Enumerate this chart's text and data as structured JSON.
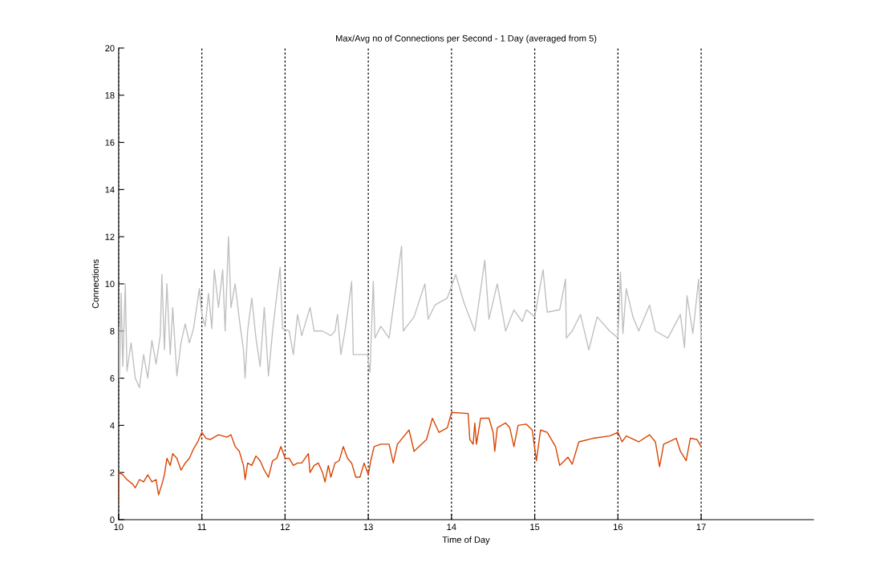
{
  "chart_data": {
    "type": "line",
    "title": "Max/Avg no of Connections per Second - 1 Day (averaged from 5)",
    "xlabel": "Time of Day",
    "ylabel": "Connections",
    "xlim": [
      10,
      18.35
    ],
    "xticks": [
      10,
      11,
      12,
      13,
      14,
      15,
      16,
      17
    ],
    "ylim": [
      0,
      20
    ],
    "yticks": [
      0,
      2,
      4,
      6,
      8,
      10,
      12,
      14,
      16,
      18,
      20
    ],
    "grid": "x",
    "line_style": "solid",
    "marker": "none",
    "series": [
      {
        "color": "#c0c0c0",
        "x": [
          10.0,
          10.01,
          10.03,
          10.05,
          10.08,
          10.1,
          10.15,
          10.2,
          10.25,
          10.3,
          10.35,
          10.4,
          10.45,
          10.5,
          10.52,
          10.55,
          10.58,
          10.62,
          10.65,
          10.7,
          10.75,
          10.8,
          10.85,
          10.9,
          10.97,
          11.0,
          11.04,
          11.08,
          11.12,
          11.15,
          11.2,
          11.25,
          11.28,
          11.32,
          11.35,
          11.4,
          11.45,
          11.5,
          11.52,
          11.55,
          11.6,
          11.65,
          11.7,
          11.75,
          11.8,
          11.85,
          11.94,
          11.97,
          12.05,
          12.1,
          12.15,
          12.2,
          12.3,
          12.35,
          12.45,
          12.55,
          12.6,
          12.63,
          12.67,
          12.72,
          12.76,
          12.8,
          12.82,
          12.9,
          12.99,
          13.02,
          13.06,
          13.08,
          13.15,
          13.25,
          13.4,
          13.42,
          13.55,
          13.68,
          13.72,
          13.8,
          13.95,
          14.05,
          14.15,
          14.28,
          14.4,
          14.45,
          14.55,
          14.65,
          14.75,
          14.85,
          14.9,
          15.0,
          15.1,
          15.15,
          15.3,
          15.37,
          15.38,
          15.45,
          15.55,
          15.65,
          15.75,
          15.9,
          16.0,
          16.03,
          16.06,
          16.1,
          16.18,
          16.25,
          16.38,
          16.45,
          16.6,
          16.75,
          16.8,
          16.83,
          16.9,
          16.97,
          17.0
        ],
        "values": [
          8.2,
          6.0,
          9.6,
          6.5,
          10.0,
          6.3,
          7.5,
          6.0,
          5.6,
          7.0,
          6.0,
          7.6,
          6.6,
          7.8,
          10.4,
          7.2,
          10.0,
          7.0,
          9.0,
          6.1,
          7.5,
          8.3,
          7.5,
          8.1,
          9.8,
          8.7,
          8.2,
          9.6,
          8.1,
          10.6,
          9.0,
          10.6,
          8.0,
          12.0,
          9.0,
          10.0,
          8.5,
          7.2,
          6.0,
          8.0,
          9.4,
          7.7,
          6.5,
          9.0,
          6.1,
          8.0,
          10.7,
          8.1,
          8.0,
          7.0,
          8.7,
          7.8,
          9.0,
          8.0,
          8.0,
          7.8,
          8.0,
          8.7,
          7.0,
          8.0,
          9.0,
          10.1,
          7.0,
          7.0,
          7.0,
          6.25,
          10.1,
          7.7,
          8.2,
          7.7,
          11.6,
          8.0,
          8.6,
          10.0,
          8.5,
          9.1,
          9.4,
          10.4,
          9.2,
          8.0,
          11.0,
          8.5,
          10.0,
          8.0,
          8.9,
          8.4,
          8.9,
          8.6,
          10.6,
          8.8,
          8.9,
          10.2,
          7.7,
          8.0,
          8.7,
          7.2,
          8.6,
          8.0,
          7.7,
          10.5,
          7.9,
          9.8,
          8.6,
          8.0,
          9.1,
          8.0,
          7.7,
          8.7,
          7.3,
          9.5,
          7.9,
          10.2,
          7.6
        ]
      },
      {
        "color": "#d94400",
        "x": [
          10.0,
          10.005,
          10.05,
          10.1,
          10.17,
          10.2,
          10.25,
          10.3,
          10.35,
          10.4,
          10.45,
          10.48,
          10.52,
          10.55,
          10.58,
          10.62,
          10.65,
          10.7,
          10.75,
          10.8,
          10.85,
          10.9,
          10.95,
          11.0,
          11.05,
          11.1,
          11.2,
          11.3,
          11.35,
          11.4,
          11.45,
          11.5,
          11.52,
          11.55,
          11.6,
          11.65,
          11.7,
          11.75,
          11.8,
          11.85,
          11.9,
          11.95,
          12.0,
          12.05,
          12.1,
          12.15,
          12.2,
          12.28,
          12.3,
          12.35,
          12.4,
          12.45,
          12.48,
          12.52,
          12.55,
          12.6,
          12.65,
          12.7,
          12.75,
          12.8,
          12.85,
          12.9,
          12.95,
          13.0,
          13.03,
          13.07,
          13.15,
          13.25,
          13.3,
          13.35,
          13.49,
          13.55,
          13.7,
          13.77,
          13.85,
          13.95,
          14.0,
          14.2,
          14.22,
          14.26,
          14.28,
          14.3,
          14.35,
          14.45,
          14.5,
          14.52,
          14.55,
          14.65,
          14.7,
          14.75,
          14.8,
          14.9,
          14.97,
          15.02,
          15.07,
          15.15,
          15.25,
          15.3,
          15.4,
          15.45,
          15.53,
          15.7,
          15.9,
          16.0,
          16.05,
          16.1,
          16.25,
          16.38,
          16.45,
          16.5,
          16.55,
          16.7,
          16.75,
          16.82,
          16.87,
          16.95,
          17.0
        ],
        "values": [
          0.7,
          2.0,
          1.9,
          1.7,
          1.5,
          1.35,
          1.7,
          1.6,
          1.9,
          1.6,
          1.7,
          1.05,
          1.5,
          1.9,
          2.6,
          2.3,
          2.8,
          2.6,
          2.1,
          2.4,
          2.6,
          3.0,
          3.3,
          3.7,
          3.45,
          3.4,
          3.6,
          3.5,
          3.6,
          3.1,
          2.9,
          2.3,
          1.7,
          2.4,
          2.3,
          2.7,
          2.5,
          2.1,
          1.8,
          2.5,
          2.6,
          3.1,
          2.6,
          2.6,
          2.3,
          2.4,
          2.4,
          2.8,
          2.0,
          2.3,
          2.4,
          2.0,
          1.6,
          2.3,
          1.8,
          2.4,
          2.5,
          3.1,
          2.6,
          2.4,
          1.8,
          1.8,
          2.4,
          1.9,
          2.5,
          3.1,
          3.2,
          3.2,
          2.4,
          3.2,
          3.8,
          2.9,
          3.4,
          4.3,
          3.7,
          3.9,
          4.55,
          4.5,
          3.4,
          3.2,
          4.1,
          3.2,
          4.3,
          4.3,
          3.7,
          2.9,
          3.9,
          4.1,
          3.9,
          3.1,
          4.0,
          4.05,
          3.8,
          2.5,
          3.8,
          3.7,
          3.1,
          2.3,
          2.65,
          2.35,
          3.3,
          3.45,
          3.55,
          3.7,
          3.3,
          3.55,
          3.3,
          3.6,
          3.3,
          2.25,
          3.2,
          3.45,
          2.9,
          2.5,
          3.45,
          3.4,
          3.1
        ]
      }
    ]
  }
}
